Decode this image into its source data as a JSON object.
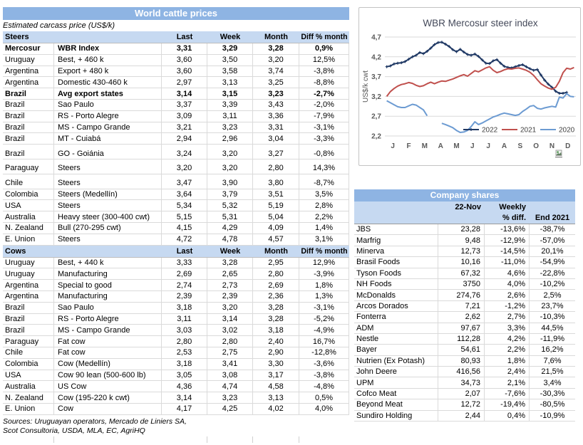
{
  "left_panel": {
    "title": "World cattle prices",
    "subtitle": "Estimated carcass price (US$/k)",
    "steers_label": "Steers",
    "cows_label": "Cows",
    "columns": [
      "Last",
      "Week",
      "Month",
      "Diff % month"
    ],
    "steers_rows": [
      {
        "country": "Mercosur",
        "spec": "WBR Index",
        "last": "3,31",
        "week": "3,29",
        "month": "3,28",
        "diff": "0,9%",
        "bold": true
      },
      {
        "country": "Uruguay",
        "spec": "Best, + 460 k",
        "last": "3,60",
        "week": "3,50",
        "month": "3,20",
        "diff": "12,5%"
      },
      {
        "country": "Argentina",
        "spec": "Export + 480 k",
        "last": "3,60",
        "week": "3,58",
        "month": "3,74",
        "diff": "-3,8%"
      },
      {
        "country": "Argentina",
        "spec": "Domestic 430-460 k",
        "last": "2,97",
        "week": "3,13",
        "month": "3,25",
        "diff": "-8,8%"
      },
      {
        "country": "Brazil",
        "spec": "Avg export states",
        "last": "3,14",
        "week": "3,15",
        "month": "3,23",
        "diff": "-2,7%",
        "bold": true
      },
      {
        "country": "Brazil",
        "spec": "Sao Paulo",
        "last": "3,37",
        "week": "3,39",
        "month": "3,43",
        "diff": "-2,0%"
      },
      {
        "country": "Brazil",
        "spec": "RS - Porto Alegre",
        "last": "3,09",
        "week": "3,11",
        "month": "3,36",
        "diff": "-7,9%"
      },
      {
        "country": "Brazil",
        "spec": "MS - Campo Grande",
        "last": "3,21",
        "week": "3,23",
        "month": "3,31",
        "diff": "-3,1%"
      },
      {
        "country": "Brazil",
        "spec": "MT - Cuiabá",
        "last": "2,94",
        "week": "2,96",
        "month": "3,04",
        "diff": "-3,3%"
      },
      {
        "country": "Brazil",
        "spec": "GO - Goiánia",
        "last": "3,24",
        "week": "3,20",
        "month": "3,27",
        "diff": "-0,8%",
        "gap_before": true
      },
      {
        "country": "Paraguay",
        "spec": "Steers",
        "last": "3,20",
        "week": "3,20",
        "month": "2,80",
        "diff": "14,3%",
        "gap_before": true
      },
      {
        "country": "Chile",
        "spec": "Steers",
        "last": "3,47",
        "week": "3,90",
        "month": "3,80",
        "diff": "-8,7%",
        "gap_before": true
      },
      {
        "country": "Colombia",
        "spec": "Steers (Medellín)",
        "last": "3,64",
        "week": "3,79",
        "month": "3,51",
        "diff": "3,5%"
      },
      {
        "country": "USA",
        "spec": "Steers",
        "last": "5,34",
        "week": "5,32",
        "month": "5,19",
        "diff": "2,8%"
      },
      {
        "country": "Australia",
        "spec": "Heavy steer (300-400 cwt)",
        "last": "5,15",
        "week": "5,31",
        "month": "5,04",
        "diff": "2,2%"
      },
      {
        "country": "N. Zealand",
        "spec": "Bull (270-295 cwt)",
        "last": "4,15",
        "week": "4,29",
        "month": "4,09",
        "diff": "1,4%"
      },
      {
        "country": "E. Union",
        "spec": "Steers",
        "last": "4,72",
        "week": "4,78",
        "month": "4,57",
        "diff": "3,1%"
      }
    ],
    "cows_rows": [
      {
        "country": "Uruguay",
        "spec": "Best, + 440 k",
        "last": "3,33",
        "week": "3,28",
        "month": "2,95",
        "diff": "12,9%"
      },
      {
        "country": "Uruguay",
        "spec": "Manufacturing",
        "last": "2,69",
        "week": "2,65",
        "month": "2,80",
        "diff": "-3,9%"
      },
      {
        "country": "Argentina",
        "spec": "Special to good",
        "last": "2,74",
        "week": "2,73",
        "month": "2,69",
        "diff": "1,8%"
      },
      {
        "country": "Argentina",
        "spec": "Manufacturing",
        "last": "2,39",
        "week": "2,39",
        "month": "2,36",
        "diff": "1,3%"
      },
      {
        "country": "Brazil",
        "spec": "Sao Paulo",
        "last": "3,18",
        "week": "3,20",
        "month": "3,28",
        "diff": "-3,1%"
      },
      {
        "country": "Brazil",
        "spec": "RS - Porto Alegre",
        "last": "3,11",
        "week": "3,14",
        "month": "3,28",
        "diff": "-5,2%"
      },
      {
        "country": "Brazil",
        "spec": "MS - Campo Grande",
        "last": "3,03",
        "week": "3,02",
        "month": "3,18",
        "diff": "-4,9%"
      },
      {
        "country": "Paraguay",
        "spec": "Fat cow",
        "last": "2,80",
        "week": "2,80",
        "month": "2,40",
        "diff": "16,7%"
      },
      {
        "country": "Chile",
        "spec": "Fat cow",
        "last": "2,53",
        "week": "2,75",
        "month": "2,90",
        "diff": "-12,8%"
      },
      {
        "country": "Colombia",
        "spec": "Cow (Medellín)",
        "last": "3,18",
        "week": "3,41",
        "month": "3,30",
        "diff": "-3,6%"
      },
      {
        "country": "USA",
        "spec": "Cow 90 lean (500-600 lb)",
        "last": "3,05",
        "week": "3,08",
        "month": "3,17",
        "diff": "-3,8%"
      },
      {
        "country": "Australia",
        "spec": "US Cow",
        "last": "4,36",
        "week": "4,74",
        "month": "4,58",
        "diff": "-4,8%"
      },
      {
        "country": "N. Zealand",
        "spec": "Cow (195-220 k cwt)",
        "last": "3,14",
        "week": "3,23",
        "month": "3,13",
        "diff": "0,5%"
      },
      {
        "country": "E. Union",
        "spec": "Cow",
        "last": "4,17",
        "week": "4,25",
        "month": "4,02",
        "diff": "4,0%"
      }
    ],
    "sources_line1": "Sources: Uruguayan operators, Mercado de Liniers SA,",
    "sources_line2": "Scot Consultoria, USDA, MLA, EC, AgriHQ"
  },
  "chart_data": {
    "type": "line",
    "title": "WBR Mercosur steer index",
    "ylabel": "US$/k cwt",
    "ylim": [
      2.2,
      4.7
    ],
    "ytick_values": [
      4.7,
      4.2,
      3.7,
      3.2,
      2.7,
      2.2
    ],
    "ytick_labels": [
      "4,7",
      "4,2",
      "3,7",
      "3,2",
      "2,7",
      "2,2"
    ],
    "x_labels": [
      "J",
      "F",
      "M",
      "A",
      "M",
      "J",
      "J",
      "A",
      "S",
      "O",
      "N",
      "D"
    ],
    "weeks": 52,
    "grid": "horizontal",
    "legend_position": "inside-bottom-right",
    "series": [
      {
        "name": "2022",
        "color": "#1F3864",
        "marker": "plus",
        "values": [
          3.95,
          3.97,
          4.02,
          4.04,
          4.05,
          4.08,
          4.14,
          4.2,
          4.24,
          4.31,
          4.28,
          4.34,
          4.42,
          4.51,
          4.56,
          4.57,
          4.52,
          4.46,
          4.38,
          4.33,
          4.39,
          4.32,
          4.26,
          4.24,
          4.27,
          4.21,
          4.12,
          4.04,
          4.03,
          4.1,
          4.13,
          4.04,
          3.96,
          3.93,
          3.92,
          3.95,
          3.98,
          4.0,
          3.95,
          3.9,
          3.86,
          3.88,
          3.74,
          3.61,
          3.51,
          3.43,
          3.33,
          3.28,
          3.28,
          3.3,
          null,
          null
        ]
      },
      {
        "name": "2021",
        "color": "#C0504D",
        "marker": null,
        "values": [
          3.2,
          3.32,
          3.4,
          3.46,
          3.5,
          3.52,
          3.55,
          3.53,
          3.48,
          3.45,
          3.47,
          3.52,
          3.56,
          3.52,
          3.56,
          3.59,
          3.58,
          3.61,
          3.64,
          3.68,
          3.72,
          3.75,
          3.71,
          3.78,
          3.85,
          3.82,
          3.87,
          3.92,
          3.95,
          3.86,
          3.8,
          3.83,
          3.87,
          3.9,
          3.89,
          3.91,
          3.92,
          3.89,
          3.86,
          3.81,
          3.73,
          3.62,
          3.52,
          3.46,
          3.41,
          3.38,
          3.43,
          3.58,
          3.8,
          3.91,
          3.89,
          3.93
        ]
      },
      {
        "name": "2020",
        "color": "#6C9BD2",
        "marker": null,
        "values": [
          3.09,
          3.04,
          2.99,
          2.94,
          2.92,
          2.92,
          2.96,
          3.0,
          2.98,
          2.92,
          2.86,
          2.71,
          null,
          null,
          null,
          2.52,
          2.49,
          2.45,
          2.41,
          2.34,
          2.29,
          2.3,
          2.34,
          2.44,
          2.56,
          2.49,
          2.53,
          2.58,
          2.63,
          2.68,
          2.71,
          2.75,
          2.78,
          2.76,
          2.74,
          2.72,
          2.74,
          2.82,
          2.88,
          2.95,
          2.97,
          2.9,
          2.88,
          2.91,
          2.93,
          2.95,
          2.93,
          3.18,
          3.16,
          3.27,
          3.2,
          3.19
        ]
      }
    ]
  },
  "company_shares": {
    "title": "Company shares",
    "date_label": "22-Nov",
    "weekly_label_1": "Weekly",
    "weekly_label_2": "% diff.",
    "end_label": "End 2021",
    "rows": [
      {
        "name": "JBS",
        "value": "23,28",
        "weekly": "-13,6%",
        "end": "-38,7%"
      },
      {
        "name": "Marfrig",
        "value": "9,48",
        "weekly": "-12,9%",
        "end": "-57,0%"
      },
      {
        "name": "Minerva",
        "value": "12,73",
        "weekly": "-14,5%",
        "end": "20,1%"
      },
      {
        "name": "Brasil Foods",
        "value": "10,16",
        "weekly": "-11,0%",
        "end": "-54,9%"
      },
      {
        "name": "Tyson Foods",
        "value": "67,32",
        "weekly": "4,6%",
        "end": "-22,8%"
      },
      {
        "name": "NH Foods",
        "value": "3750",
        "weekly": "4,0%",
        "end": "-10,2%"
      },
      {
        "name": "McDonalds",
        "value": "274,76",
        "weekly": "2,6%",
        "end": "2,5%"
      },
      {
        "name": "Arcos Dorados",
        "value": "7,21",
        "weekly": "-1,2%",
        "end": "23,7%"
      },
      {
        "name": "Fonterra",
        "value": "2,62",
        "weekly": "2,7%",
        "end": "-10,3%"
      },
      {
        "name": "ADM",
        "value": "97,67",
        "weekly": "3,3%",
        "end": "44,5%"
      },
      {
        "name": "Nestle",
        "value": "112,28",
        "weekly": "4,2%",
        "end": "-11,9%"
      },
      {
        "name": "Bayer",
        "value": "54,61",
        "weekly": "2,2%",
        "end": "16,2%"
      },
      {
        "name": "Nutrien (Ex Potash)",
        "value": "80,93",
        "weekly": "1,8%",
        "end": "7,6%"
      },
      {
        "name": "John Deere",
        "value": "416,56",
        "weekly": "2,4%",
        "end": "21,5%"
      },
      {
        "name": "UPM",
        "value": "34,73",
        "weekly": "2,1%",
        "end": "3,4%"
      },
      {
        "name": "Cofco Meat",
        "value": "2,07",
        "weekly": "-7,6%",
        "end": "-30,3%"
      },
      {
        "name": "Beyond Meat",
        "value": "12,72",
        "weekly": "-19,4%",
        "end": "-80,5%"
      },
      {
        "name": "Sundiro Holding",
        "value": "2,44",
        "weekly": "0,4%",
        "end": "-10,9%"
      }
    ]
  },
  "colors": {
    "header_blue": "#8EB4E3",
    "subheader_blue": "#C6D9F1",
    "series_2022": "#1F3864",
    "series_2021": "#C0504D",
    "series_2020": "#6C9BD2"
  }
}
